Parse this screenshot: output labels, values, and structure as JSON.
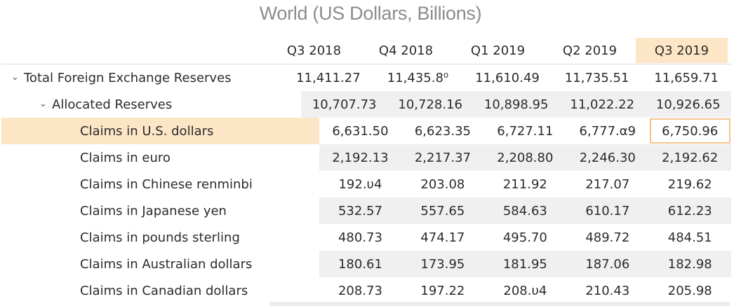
{
  "title": "World (US Dollars, Billions)",
  "columns": [
    "Q3 2018",
    "Q4 2018",
    "Q1 2019",
    "Q2 2019",
    "Q3 2019"
  ],
  "rows": [
    {
      "label": "Total Foreign Exchange Reserves",
      "values": [
        "11,411.27",
        "11,435.8⁰",
        "11,610.49",
        "11,735.51",
        "11,659.71"
      ]
    },
    {
      "label": "Allocated Reserves",
      "values": [
        "10,707.73",
        "10,728.16",
        "10,898.95",
        "11,022.22",
        "10,926.65"
      ]
    },
    {
      "label": "Claims in U.S. dollars",
      "values": [
        "6,631.50",
        "6,623.35",
        "6,727.11",
        "6,777.α9",
        "6,750.96"
      ]
    },
    {
      "label": "Claims in euro",
      "values": [
        "2,192.13",
        "2,217.37",
        "2,208.80",
        "2,246.30",
        "2,192.62"
      ]
    },
    {
      "label": "Claims in Chinese renminbi",
      "values": [
        "192.υ4",
        "203.08",
        "211.92",
        "217.07",
        "219.62"
      ]
    },
    {
      "label": "Claims in Japanese yen",
      "values": [
        "532.57",
        "557.65",
        "584.63",
        "610.17",
        "612.23"
      ]
    },
    {
      "label": "Claims in pounds sterling",
      "values": [
        "480.73",
        "474.17",
        "495.70",
        "489.72",
        "484.51"
      ]
    },
    {
      "label": "Claims in Australian dollars",
      "values": [
        "180.61",
        "173.95",
        "181.95",
        "187.06",
        "182.98"
      ]
    },
    {
      "label": "Claims in Canadian dollars",
      "values": [
        "208.73",
        "197.22",
        "208.υ4",
        "210.43",
        "205.98"
      ]
    }
  ],
  "icons": {
    "expand": "chevron-down-icon"
  },
  "colors": {
    "highlight": "#fde6c6",
    "selection_border": "#f2c48d",
    "shade": "#f0f0f0",
    "title": "#8c8c8c"
  }
}
